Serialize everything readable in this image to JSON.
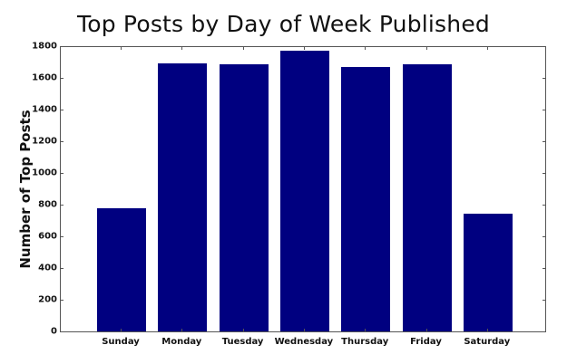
{
  "chart_data": {
    "type": "bar",
    "title": "Top Posts by Day of Week Published",
    "xlabel": "",
    "ylabel": "Number of Top Posts",
    "categories": [
      "Sunday",
      "Monday",
      "Tuesday",
      "Wednesday",
      "Thursday",
      "Friday",
      "Saturday"
    ],
    "values": [
      780,
      1690,
      1683,
      1770,
      1669,
      1683,
      745
    ],
    "ylim": [
      0,
      1800
    ],
    "yticks": [
      0,
      200,
      400,
      600,
      800,
      1000,
      1200,
      1400,
      1600,
      1800
    ],
    "grid": false,
    "legend": null,
    "bar_color": "#000080"
  }
}
